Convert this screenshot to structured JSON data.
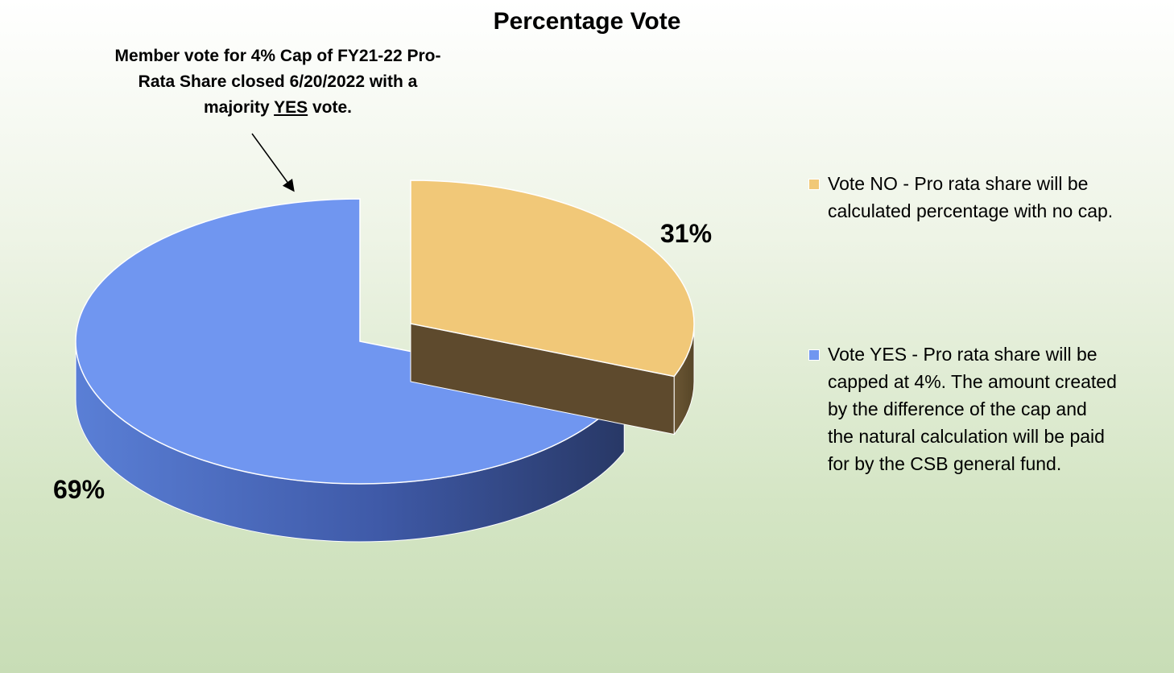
{
  "chart_data": {
    "type": "pie",
    "variant": "3d-exploded",
    "title": "Percentage Vote",
    "annotation": {
      "line1": "Member vote for 4% Cap of FY21-22 Pro-",
      "line2": "Rata Share closed 6/20/2022 with a",
      "line3_pre": "majority ",
      "line3_em": "YES",
      "line3_post": " vote."
    },
    "slices": [
      {
        "label_line1": "Vote NO - Pro rata share will be",
        "label_line2": "calculated percentage with no cap.",
        "value": 31,
        "display": "31%",
        "color": "#f1c878"
      },
      {
        "label_line1": "Vote YES - Pro rata share will be",
        "label_line2": "capped at 4%. The amount created",
        "label_line3": "by the difference of the cap and",
        "label_line4": "the natural calculation will be paid",
        "label_line5": "for by the CSB general fund.",
        "value": 69,
        "display": "69%",
        "color": "#7096f0"
      }
    ],
    "legend_position": "right"
  }
}
